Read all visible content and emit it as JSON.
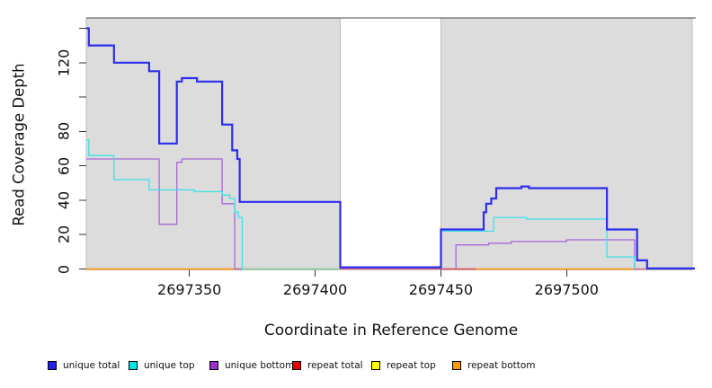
{
  "chart_data": {
    "type": "line",
    "subtype": "step-coverage-plot",
    "xlabel": "Coordinate in Reference Genome",
    "ylabel": "Read Coverage Depth",
    "xlim": [
      2697309,
      2697551
    ],
    "ylim": [
      0,
      146
    ],
    "grid": false,
    "x_ticks": [
      2697350,
      2697400,
      2697450,
      2697500
    ],
    "x_tick_labels": [
      "2697350",
      "2697400",
      "2697450",
      "2697500"
    ],
    "y_ticks": [
      0,
      20,
      40,
      60,
      80,
      100,
      120,
      140
    ],
    "y_tick_labels": [
      "0",
      "20",
      "40",
      "60",
      "80",
      "",
      "120",
      ""
    ],
    "highlight_regions": [
      {
        "x1": 2697309,
        "x2": 2697410,
        "fill": "#dcdcdc",
        "stroke": "#bdbdbd"
      },
      {
        "x1": 2697450,
        "x2": 2697550,
        "fill": "#dcdcdc",
        "stroke": "#bdbdbd"
      }
    ],
    "series": [
      {
        "name": "repeat total",
        "color": "#e02020",
        "width": 1.2,
        "steps": [
          [
            2697309,
            0
          ]
        ]
      },
      {
        "name": "repeat top",
        "color": "#f5e900",
        "width": 1.2,
        "steps": [
          [
            2697309,
            0
          ]
        ]
      },
      {
        "name": "repeat bottom",
        "color": "#ff9d1c",
        "width": 1.5,
        "steps": [
          [
            2697309,
            0
          ]
        ]
      },
      {
        "name": "unique bottom",
        "color": "#a766d9",
        "width": 1.3,
        "steps": [
          [
            2697309,
            64
          ],
          [
            2697338,
            26
          ],
          [
            2697345,
            62
          ],
          [
            2697347,
            64
          ],
          [
            2697363,
            38
          ],
          [
            2697368,
            0
          ],
          [
            2697456,
            14
          ],
          [
            2697469,
            15
          ],
          [
            2697478,
            16
          ],
          [
            2697500,
            17
          ],
          [
            2697527,
            0
          ]
        ]
      },
      {
        "name": "unique top",
        "color": "#3ae2ea",
        "width": 1.3,
        "steps": [
          [
            2697309,
            75
          ],
          [
            2697310,
            66
          ],
          [
            2697320,
            52
          ],
          [
            2697334,
            46
          ],
          [
            2697352,
            45
          ],
          [
            2697363,
            43
          ],
          [
            2697366,
            41
          ],
          [
            2697368,
            33
          ],
          [
            2697369.5,
            30
          ],
          [
            2697371,
            0
          ],
          [
            2697450,
            22
          ],
          [
            2697471,
            30
          ],
          [
            2697484,
            29
          ],
          [
            2697516,
            7
          ],
          [
            2697527,
            0
          ]
        ]
      },
      {
        "name": "unique total",
        "color": "#2d2df0",
        "width": 2.2,
        "steps": [
          [
            2697309,
            140
          ],
          [
            2697310,
            130
          ],
          [
            2697320,
            120
          ],
          [
            2697334,
            115
          ],
          [
            2697338,
            73
          ],
          [
            2697345,
            109
          ],
          [
            2697347,
            111
          ],
          [
            2697353,
            109
          ],
          [
            2697363,
            84
          ],
          [
            2697367,
            69
          ],
          [
            2697369,
            64
          ],
          [
            2697370,
            39
          ],
          [
            2697410,
            1
          ],
          [
            2697450,
            23
          ],
          [
            2697467,
            33
          ],
          [
            2697468,
            38
          ],
          [
            2697470,
            41
          ],
          [
            2697472,
            47
          ],
          [
            2697482,
            48
          ],
          [
            2697485,
            47
          ],
          [
            2697516,
            23
          ],
          [
            2697528,
            5
          ],
          [
            2697532,
            0.3
          ]
        ]
      }
    ],
    "baseline_blend_segments": [
      {
        "x1": 2697371,
        "x2": 2697410,
        "color": "#8fd4a8"
      },
      {
        "x1": 2697410,
        "x2": 2697464,
        "color": "#d65577"
      },
      {
        "x1": 2697527,
        "x2": 2697532,
        "color": "#e077a0"
      }
    ],
    "legend": {
      "position": "bottom-horizontal",
      "items": [
        {
          "label": "unique total",
          "color": "#2222ee"
        },
        {
          "label": "unique top",
          "color": "#00e6e6"
        },
        {
          "label": "unique bottom",
          "color": "#9933cc"
        },
        {
          "label": "repeat total",
          "color": "#ee0000"
        },
        {
          "label": "repeat top",
          "color": "#ffff00"
        },
        {
          "label": "repeat bottom",
          "color": "#ff9900"
        }
      ]
    },
    "frame": {
      "top_border_color": "#4d4d4d",
      "tick_color": "#333333"
    }
  }
}
